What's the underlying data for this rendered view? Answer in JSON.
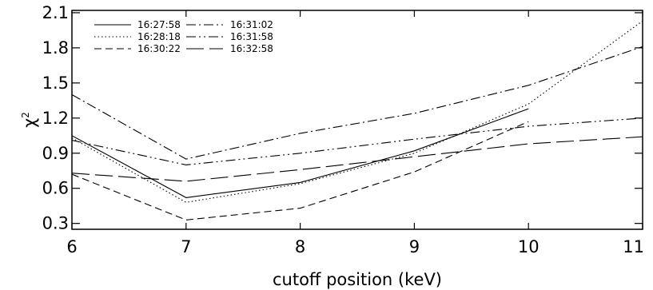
{
  "chart_data": {
    "type": "line",
    "xlabel": "cutoff position (keV)",
    "ylabel_base": "χ",
    "ylabel_sup": "2",
    "xlim": [
      6,
      11
    ],
    "ylim": [
      0.25,
      2.12
    ],
    "xticks": [
      6,
      7,
      8,
      9,
      10,
      11
    ],
    "xtick_labels": [
      "6",
      "7",
      "8",
      "9",
      "10",
      "11"
    ],
    "yticks": [
      0.3,
      0.6,
      0.9,
      1.2,
      1.5,
      1.8,
      2.1
    ],
    "ytick_labels": [
      "0.3",
      "0.6",
      "0.9",
      "1.2",
      "1.5",
      "1.8",
      "2.1"
    ],
    "legend_position": "top-left",
    "series": [
      {
        "name": "16:27:58",
        "dash": "solid",
        "x": [
          6,
          7,
          8,
          9,
          10
        ],
        "y": [
          1.05,
          0.52,
          0.65,
          0.92,
          1.28
        ]
      },
      {
        "name": "16:28:18",
        "dash": "dotted",
        "x": [
          6,
          7,
          8,
          9,
          10,
          11
        ],
        "y": [
          1.03,
          0.48,
          0.64,
          0.9,
          1.32,
          2.03
        ]
      },
      {
        "name": "16:30:22",
        "dash": "dashed",
        "x": [
          6,
          7,
          8,
          9,
          10
        ],
        "y": [
          0.72,
          0.33,
          0.43,
          0.74,
          1.17
        ]
      },
      {
        "name": "16:31:02",
        "dash": "dashdot",
        "x": [
          6,
          7,
          8,
          9,
          10,
          11
        ],
        "y": [
          1.4,
          0.85,
          1.07,
          1.24,
          1.48,
          1.81
        ]
      },
      {
        "name": "16:31:58",
        "dash": "dashdotdot",
        "x": [
          6,
          7,
          8,
          9,
          10,
          11
        ],
        "y": [
          1.01,
          0.8,
          0.9,
          1.02,
          1.13,
          1.2
        ]
      },
      {
        "name": "16:32:58",
        "dash": "longdash",
        "x": [
          6,
          7,
          8,
          9,
          10,
          11
        ],
        "y": [
          0.73,
          0.66,
          0.76,
          0.87,
          0.98,
          1.04
        ]
      }
    ]
  }
}
